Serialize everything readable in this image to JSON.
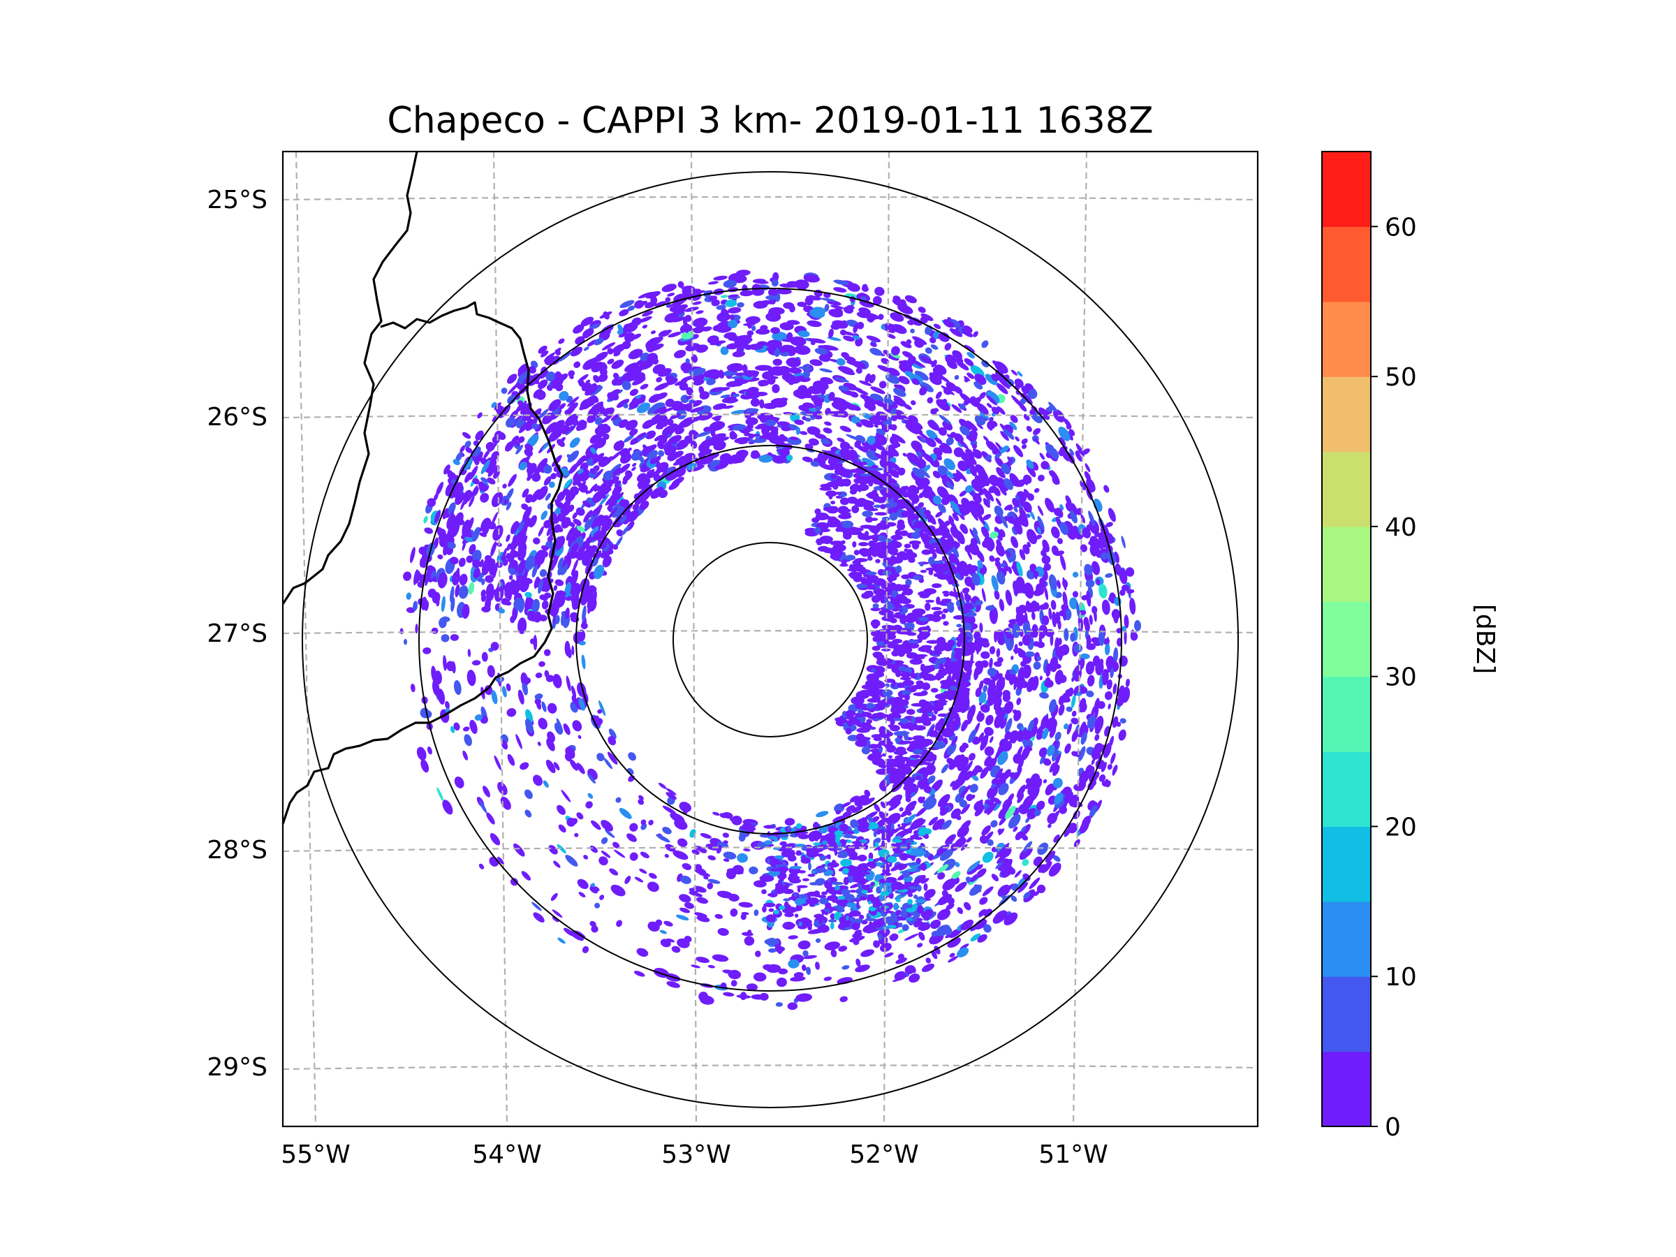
{
  "title": "Chapeco - CAPPI 3 km- 2019-01-11 1638Z",
  "map": {
    "lon_labels": [
      "55°W",
      "54°W",
      "53°W",
      "52°W",
      "51°W"
    ],
    "lat_labels": [
      "25°S",
      "26°S",
      "27°S",
      "28°S",
      "29°S"
    ],
    "range_rings": 4,
    "echo_colormap": "rainbow"
  },
  "colorbar": {
    "label": "[dBZ]",
    "tick_labels": [
      "0",
      "10",
      "20",
      "30",
      "40",
      "50",
      "60"
    ],
    "min": 0,
    "max": 65,
    "step": 5,
    "colors": [
      "#6f1dfb",
      "#4458f0",
      "#2a8ff0",
      "#11bee4",
      "#2ee3d0",
      "#55f6b3",
      "#80fd9c",
      "#a8f780",
      "#cadf6d",
      "#f0be6d",
      "#ff8c4a",
      "#ff5a30",
      "#ff1e17"
    ]
  }
}
